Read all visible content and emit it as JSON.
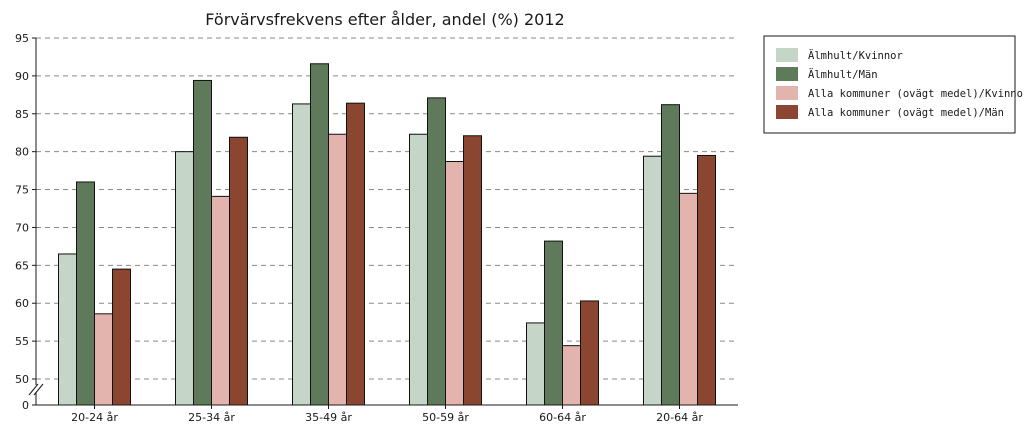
{
  "chart_data": {
    "type": "bar",
    "title": "Förvärvsfrekvens efter ålder, andel (%) 2012",
    "xlabel": "",
    "ylabel": "",
    "categories": [
      "20-24 år",
      "25-34 år",
      "35-49 år",
      "50-59 år",
      "60-64 år",
      "20-64 år"
    ],
    "series": [
      {
        "name": "Älmhult/Kvinnor",
        "color": "#c5d5c8",
        "values": [
          66.5,
          80.0,
          86.3,
          82.3,
          57.4,
          79.4
        ]
      },
      {
        "name": "Älmhult/Män",
        "color": "#5e7a5a",
        "values": [
          76.0,
          89.4,
          91.6,
          87.1,
          68.2,
          86.2
        ]
      },
      {
        "name": "Alla kommuner (ovägt medel)/Kvinnor",
        "color": "#e3b4ad",
        "values": [
          58.6,
          74.1,
          82.3,
          78.7,
          54.4,
          74.5
        ]
      },
      {
        "name": "Alla kommuner (ovägt medel)/Män",
        "color": "#8b4632",
        "values": [
          64.5,
          81.9,
          86.4,
          82.1,
          60.3,
          79.5
        ]
      }
    ],
    "ylim": [
      50,
      95
    ],
    "yticks": [
      "95",
      "90",
      "85",
      "80",
      "75",
      "70",
      "65",
      "60",
      "55",
      "50",
      "0"
    ],
    "axis_break": true,
    "grid": "horizontal dashed",
    "legend": "right"
  }
}
